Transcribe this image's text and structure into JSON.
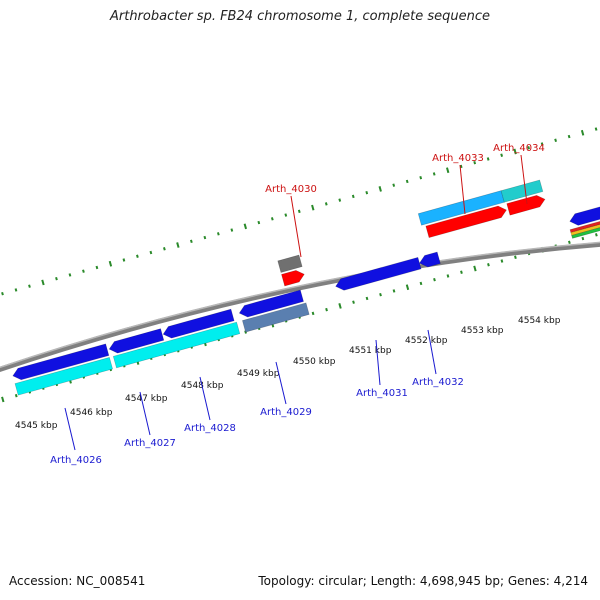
{
  "title": "Arthrobacter sp. FB24 chromosome 1, complete sequence",
  "accession_text": "Accession: NC_008541",
  "summary_text": "Topology: circular; Length: 4,698,945 bp; Genes: 4,214",
  "colors": {
    "backbone": "#808080",
    "tick": "#2a8a2a",
    "forward_gene_dark": "#ff0000",
    "forward_gene_light": "#1ab2ff",
    "reverse_gene_dark": "#1010e0",
    "reverse_gene_light": "#00eeee",
    "reverse_label": "#1a1ad0",
    "forward_label": "#cc1111",
    "pseudo_gene": "#707070",
    "slate_gene": "#5a7fb0"
  },
  "scale_labels": [
    {
      "text": "4545 kbp"
    },
    {
      "text": "4546 kbp"
    },
    {
      "text": "4547 kbp"
    },
    {
      "text": "4548 kbp"
    },
    {
      "text": "4549 kbp"
    },
    {
      "text": "4550 kbp"
    },
    {
      "text": "4551 kbp"
    },
    {
      "text": "4552 kbp"
    },
    {
      "text": "4553 kbp"
    },
    {
      "text": "4554 kbp"
    }
  ],
  "gene_labels": {
    "forward": [
      "Arth_4030",
      "Arth_4033",
      "Arth_4034"
    ],
    "reverse": [
      "Arth_4026",
      "Arth_4027",
      "Arth_4028",
      "Arth_4029",
      "Arth_4031",
      "Arth_4032"
    ]
  }
}
